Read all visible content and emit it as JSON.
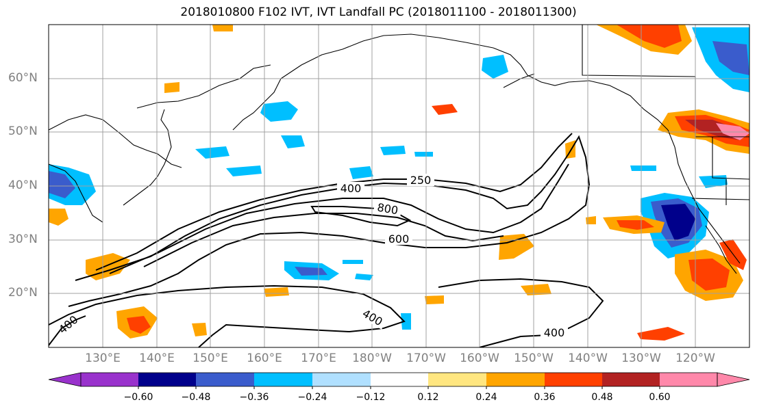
{
  "title": "2018010800 F102 IVT, IVT Landfall PC (2018011100 - 2018011300)",
  "lat_labels": [
    "60°N",
    "50°N",
    "40°N",
    "30°N",
    "20°N"
  ],
  "lon_labels": [
    "130°E",
    "140°E",
    "150°E",
    "160°E",
    "170°E",
    "180°W",
    "170°W",
    "160°W",
    "150°W",
    "140°W",
    "130°W",
    "120°W"
  ],
  "contour_labels": [
    "250",
    "400",
    "800",
    "600",
    "400",
    "400",
    "400"
  ],
  "colorbar": {
    "labels": [
      "−0.60",
      "−0.48",
      "−0.36",
      "−0.24",
      "−0.12",
      "0.12",
      "0.24",
      "0.36",
      "0.48",
      "0.60"
    ],
    "colors": [
      "#9932cc",
      "#00008b",
      "#3a5ccc",
      "#00bfff",
      "#b0e0ff",
      "#ffffff",
      "#ffe680",
      "#ffa500",
      "#ff4000",
      "#b22222",
      "#ff88aa"
    ]
  },
  "colors": {
    "contour": "#000000",
    "coast": "#000000",
    "grid": "#a0a0a0",
    "axis_label": "#808080"
  }
}
